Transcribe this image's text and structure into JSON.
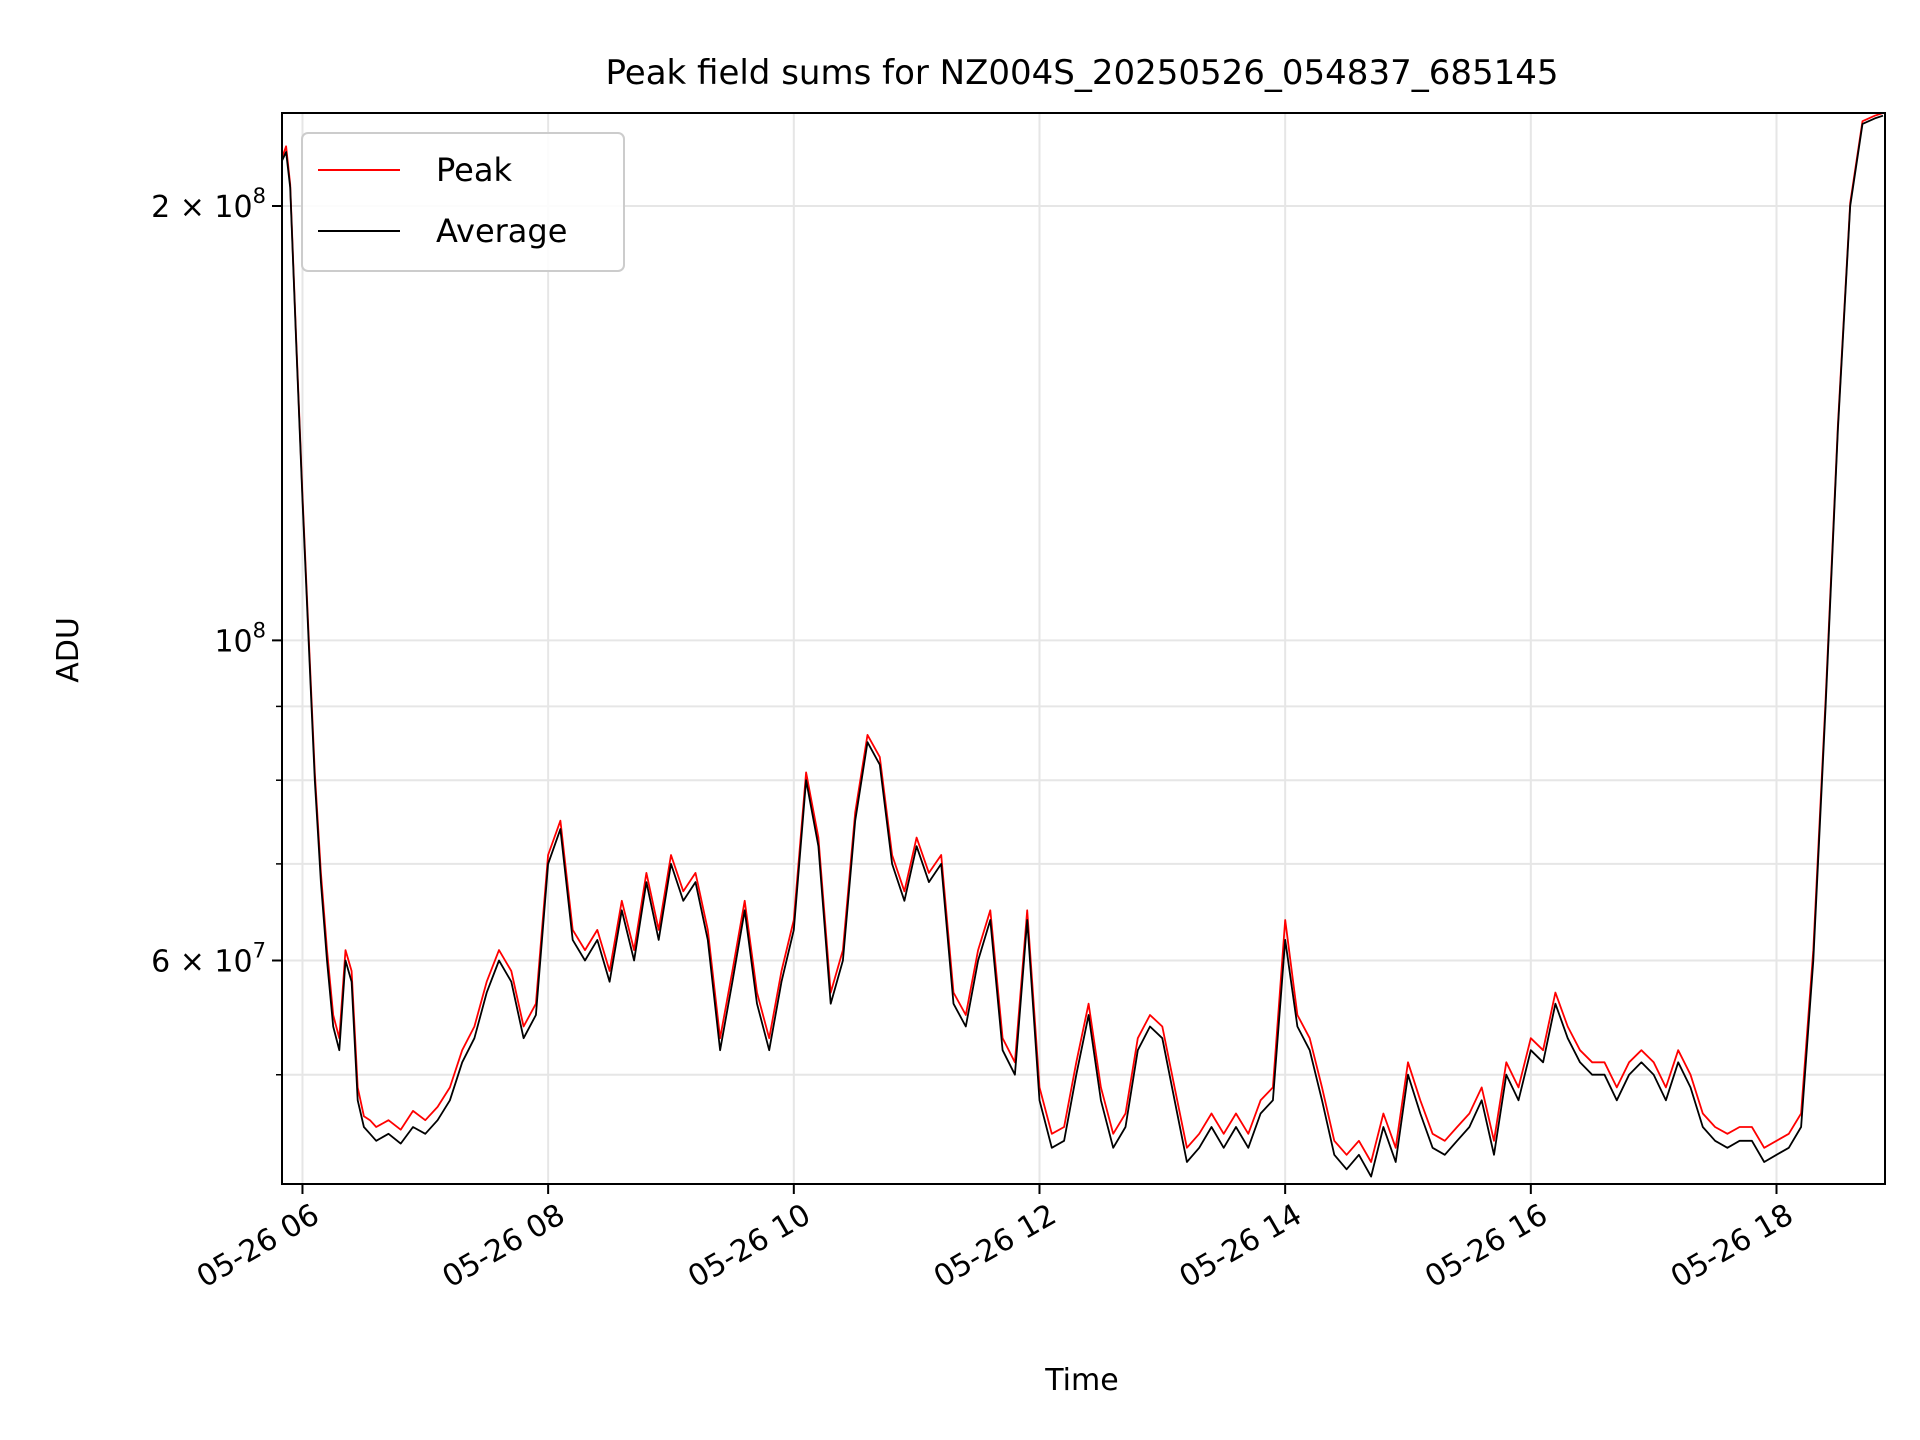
{
  "chart_data": {
    "type": "line",
    "title": "Peak field sums for NZ004S_20250526_054837_685145",
    "xlabel": "Time",
    "ylabel": "ADU",
    "yscale": "log",
    "grid": true,
    "legend_position": "top-left",
    "xlim": [
      "2025-05-26 05:50",
      "2025-05-26 18:53"
    ],
    "ylim": [
      42000000,
      232000000
    ],
    "x_ticks": [
      {
        "value": "2025-05-26 06:00",
        "label": "05-26 06"
      },
      {
        "value": "2025-05-26 08:00",
        "label": "05-26 08"
      },
      {
        "value": "2025-05-26 10:00",
        "label": "05-26 10"
      },
      {
        "value": "2025-05-26 12:00",
        "label": "05-26 12"
      },
      {
        "value": "2025-05-26 14:00",
        "label": "05-26 14"
      },
      {
        "value": "2025-05-26 16:00",
        "label": "05-26 16"
      },
      {
        "value": "2025-05-26 18:00",
        "label": "05-26 18"
      }
    ],
    "y_ticks_major": [
      {
        "value": 200000000,
        "base": "2 × 10",
        "exp": "8"
      },
      {
        "value": 100000000,
        "base": "10",
        "exp": "8"
      },
      {
        "value": 60000000,
        "base": "6 × 10",
        "exp": "7"
      }
    ],
    "y_ticks_minor": [
      50000000,
      70000000,
      80000000,
      90000000
    ],
    "x": [
      "2025-05-26 05:50",
      "2025-05-26 05:52",
      "2025-05-26 05:54",
      "2025-05-26 05:57",
      "2025-05-26 06:00",
      "2025-05-26 06:03",
      "2025-05-26 06:06",
      "2025-05-26 06:09",
      "2025-05-26 06:12",
      "2025-05-26 06:15",
      "2025-05-26 06:18",
      "2025-05-26 06:21",
      "2025-05-26 06:24",
      "2025-05-26 06:27",
      "2025-05-26 06:30",
      "2025-05-26 06:33",
      "2025-05-26 06:36",
      "2025-05-26 06:42",
      "2025-05-26 06:48",
      "2025-05-26 06:54",
      "2025-05-26 07:00",
      "2025-05-26 07:06",
      "2025-05-26 07:12",
      "2025-05-26 07:18",
      "2025-05-26 07:24",
      "2025-05-26 07:30",
      "2025-05-26 07:36",
      "2025-05-26 07:42",
      "2025-05-26 07:48",
      "2025-05-26 07:54",
      "2025-05-26 08:00",
      "2025-05-26 08:06",
      "2025-05-26 08:12",
      "2025-05-26 08:18",
      "2025-05-26 08:24",
      "2025-05-26 08:30",
      "2025-05-26 08:36",
      "2025-05-26 08:42",
      "2025-05-26 08:48",
      "2025-05-26 08:54",
      "2025-05-26 09:00",
      "2025-05-26 09:06",
      "2025-05-26 09:12",
      "2025-05-26 09:18",
      "2025-05-26 09:24",
      "2025-05-26 09:30",
      "2025-05-26 09:36",
      "2025-05-26 09:42",
      "2025-05-26 09:48",
      "2025-05-26 09:54",
      "2025-05-26 10:00",
      "2025-05-26 10:06",
      "2025-05-26 10:12",
      "2025-05-26 10:18",
      "2025-05-26 10:24",
      "2025-05-26 10:30",
      "2025-05-26 10:36",
      "2025-05-26 10:42",
      "2025-05-26 10:48",
      "2025-05-26 10:54",
      "2025-05-26 11:00",
      "2025-05-26 11:06",
      "2025-05-26 11:12",
      "2025-05-26 11:18",
      "2025-05-26 11:24",
      "2025-05-26 11:30",
      "2025-05-26 11:36",
      "2025-05-26 11:42",
      "2025-05-26 11:48",
      "2025-05-26 11:54",
      "2025-05-26 12:00",
      "2025-05-26 12:06",
      "2025-05-26 12:12",
      "2025-05-26 12:18",
      "2025-05-26 12:24",
      "2025-05-26 12:30",
      "2025-05-26 12:36",
      "2025-05-26 12:42",
      "2025-05-26 12:48",
      "2025-05-26 12:54",
      "2025-05-26 13:00",
      "2025-05-26 13:06",
      "2025-05-26 13:12",
      "2025-05-26 13:18",
      "2025-05-26 13:24",
      "2025-05-26 13:30",
      "2025-05-26 13:36",
      "2025-05-26 13:42",
      "2025-05-26 13:48",
      "2025-05-26 13:54",
      "2025-05-26 14:00",
      "2025-05-26 14:06",
      "2025-05-26 14:12",
      "2025-05-26 14:18",
      "2025-05-26 14:24",
      "2025-05-26 14:30",
      "2025-05-26 14:36",
      "2025-05-26 14:42",
      "2025-05-26 14:48",
      "2025-05-26 14:54",
      "2025-05-26 15:00",
      "2025-05-26 15:06",
      "2025-05-26 15:12",
      "2025-05-26 15:18",
      "2025-05-26 15:24",
      "2025-05-26 15:30",
      "2025-05-26 15:36",
      "2025-05-26 15:42",
      "2025-05-26 15:48",
      "2025-05-26 15:54",
      "2025-05-26 16:00",
      "2025-05-26 16:06",
      "2025-05-26 16:12",
      "2025-05-26 16:18",
      "2025-05-26 16:24",
      "2025-05-26 16:30",
      "2025-05-26 16:36",
      "2025-05-26 16:42",
      "2025-05-26 16:48",
      "2025-05-26 16:54",
      "2025-05-26 17:00",
      "2025-05-26 17:06",
      "2025-05-26 17:12",
      "2025-05-26 17:18",
      "2025-05-26 17:24",
      "2025-05-26 17:30",
      "2025-05-26 17:36",
      "2025-05-26 17:42",
      "2025-05-26 17:48",
      "2025-05-26 17:54",
      "2025-05-26 18:00",
      "2025-05-26 18:06",
      "2025-05-26 18:12",
      "2025-05-26 18:18",
      "2025-05-26 18:24",
      "2025-05-26 18:30",
      "2025-05-26 18:36",
      "2025-05-26 18:42",
      "2025-05-26 18:48",
      "2025-05-26 18:52"
    ],
    "series": [
      {
        "name": "Average",
        "color": "#000000",
        "values": [
          215000000,
          218000000,
          206000000,
          160000000,
          125000000,
          100000000,
          80000000,
          68000000,
          60000000,
          54000000,
          52000000,
          60000000,
          58000000,
          48000000,
          46000000,
          45500000,
          45000000,
          45500000,
          44800000,
          46000000,
          45500000,
          46500000,
          48000000,
          51000000,
          53000000,
          57000000,
          60000000,
          58000000,
          53000000,
          55000000,
          70000000,
          74000000,
          62000000,
          60000000,
          62000000,
          58000000,
          65000000,
          60000000,
          68000000,
          62000000,
          70000000,
          66000000,
          68000000,
          62000000,
          52000000,
          58000000,
          65000000,
          56000000,
          52000000,
          58000000,
          63000000,
          80000000,
          72000000,
          56000000,
          60000000,
          75000000,
          85000000,
          82000000,
          70000000,
          66000000,
          72000000,
          68000000,
          70000000,
          56000000,
          54000000,
          60000000,
          64000000,
          52000000,
          50000000,
          64000000,
          48000000,
          44500000,
          45000000,
          50000000,
          55000000,
          48000000,
          44500000,
          46000000,
          52000000,
          54000000,
          53000000,
          48000000,
          43500000,
          44500000,
          46000000,
          44500000,
          46000000,
          44500000,
          47000000,
          48000000,
          62000000,
          54000000,
          52000000,
          48000000,
          44000000,
          43000000,
          44000000,
          42500000,
          46000000,
          43500000,
          50000000,
          47000000,
          44500000,
          44000000,
          45000000,
          46000000,
          48000000,
          44000000,
          50000000,
          48000000,
          52000000,
          51000000,
          56000000,
          53000000,
          51000000,
          50000000,
          50000000,
          48000000,
          50000000,
          51000000,
          50000000,
          48000000,
          51000000,
          49000000,
          46000000,
          45000000,
          44500000,
          45000000,
          45000000,
          43500000,
          44000000,
          44500000,
          46000000,
          60000000,
          90000000,
          140000000,
          200000000,
          228000000,
          230000000,
          231000000
        ]
      },
      {
        "name": "Peak",
        "color": "#ff0000",
        "values": [
          216000000,
          220000000,
          207000000,
          161000000,
          126000000,
          101000000,
          81000000,
          69000000,
          61000000,
          55000000,
          53000000,
          61000000,
          59000000,
          49000000,
          46800000,
          46500000,
          46000000,
          46500000,
          45800000,
          47200000,
          46500000,
          47500000,
          49000000,
          52000000,
          54000000,
          58000000,
          61000000,
          59000000,
          54000000,
          56000000,
          71000000,
          75000000,
          63000000,
          61000000,
          63000000,
          59000000,
          66000000,
          61000000,
          69000000,
          63000000,
          71000000,
          67000000,
          69000000,
          63000000,
          53000000,
          59000000,
          66000000,
          57000000,
          53000000,
          59000000,
          64000000,
          81000000,
          73000000,
          57000000,
          61000000,
          76000000,
          86000000,
          83000000,
          71000000,
          67000000,
          73000000,
          69000000,
          71000000,
          57000000,
          55000000,
          61000000,
          65000000,
          53000000,
          51000000,
          65000000,
          49000000,
          45500000,
          46000000,
          51000000,
          56000000,
          49000000,
          45500000,
          47000000,
          53000000,
          55000000,
          54000000,
          49000000,
          44500000,
          45500000,
          47000000,
          45500000,
          47000000,
          45500000,
          48000000,
          49000000,
          64000000,
          55000000,
          53000000,
          49000000,
          45000000,
          44000000,
          45000000,
          43500000,
          47000000,
          44500000,
          51000000,
          48000000,
          45500000,
          45000000,
          46000000,
          47000000,
          49000000,
          45000000,
          51000000,
          49000000,
          53000000,
          52000000,
          57000000,
          54000000,
          52000000,
          51000000,
          51000000,
          49000000,
          51000000,
          52000000,
          51000000,
          49000000,
          52000000,
          50000000,
          47000000,
          46000000,
          45500000,
          46000000,
          46000000,
          44500000,
          45000000,
          45500000,
          47000000,
          61000000,
          91000000,
          141000000,
          201000000,
          229000000,
          231000000,
          232000000
        ]
      }
    ]
  }
}
